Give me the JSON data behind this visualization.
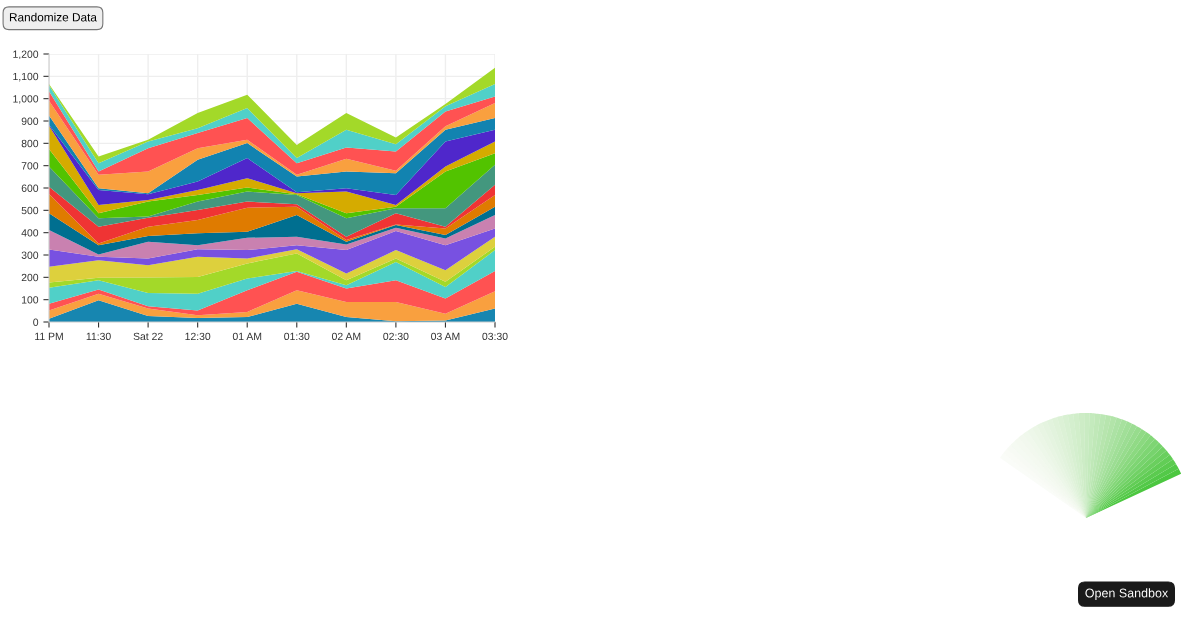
{
  "chart_data": {
    "type": "area",
    "stacked": true,
    "grid": true,
    "legend": false,
    "categories": [
      "11 PM",
      "11:30",
      "Sat 22",
      "12:30",
      "01 AM",
      "01:30",
      "02 AM",
      "02:30",
      "03 AM",
      "03:30"
    ],
    "ylim": [
      0,
      1200
    ],
    "yticks": [
      0,
      100,
      200,
      300,
      400,
      500,
      600,
      700,
      800,
      900,
      {
        "value": 1000,
        "label": "1,000"
      },
      {
        "value": 1100,
        "label": "1,100"
      },
      {
        "value": 1200,
        "label": "1,200"
      }
    ],
    "series": [
      {
        "color": "#1786b0",
        "values": [
          15,
          97,
          27,
          18,
          22,
          82,
          22,
          3,
          7,
          60
        ]
      },
      {
        "color": "#f9a03f",
        "values": [
          37,
          30,
          33,
          12,
          23,
          60,
          68,
          87,
          30,
          78
        ]
      },
      {
        "color": "#ff5252",
        "values": [
          30,
          18,
          10,
          22,
          97,
          83,
          60,
          97,
          68,
          90
        ]
      },
      {
        "color": "#50d0c8",
        "values": [
          71,
          42,
          60,
          75,
          53,
          3,
          15,
          82,
          52,
          94
        ]
      },
      {
        "color": "#a3d929",
        "values": [
          24,
          11,
          69,
          75,
          67,
          79,
          22,
          15,
          23,
          15
        ]
      },
      {
        "color": "#ddd03d",
        "values": [
          70,
          79,
          55,
          90,
          22,
          19,
          30,
          38,
          52,
          45
        ]
      },
      {
        "color": "#7851e1",
        "values": [
          78,
          15,
          30,
          34,
          38,
          18,
          105,
          85,
          112,
          37
        ]
      },
      {
        "color": "#c981b0",
        "values": [
          87,
          10,
          75,
          18,
          55,
          38,
          25,
          15,
          30,
          60
        ]
      },
      {
        "color": "#006f90",
        "values": [
          75,
          42,
          26,
          53,
          27,
          97,
          12,
          12,
          15,
          37
        ]
      },
      {
        "color": "#df7b00",
        "values": [
          86,
          8,
          42,
          60,
          108,
          37,
          8,
          3,
          30,
          53
        ]
      },
      {
        "color": "#ef3434",
        "values": [
          33,
          75,
          40,
          44,
          27,
          11,
          15,
          50,
          8,
          45
        ]
      },
      {
        "color": "#43977e",
        "values": [
          90,
          37,
          5,
          38,
          45,
          42,
          82,
          22,
          82,
          90
        ]
      },
      {
        "color": "#52c300",
        "values": [
          79,
          23,
          67,
          30,
          18,
          3,
          23,
          7,
          165,
          52
        ]
      },
      {
        "color": "#d5ab00",
        "values": [
          104,
          37,
          7,
          22,
          42,
          4,
          97,
          8,
          22,
          52
        ]
      },
      {
        "color": "#4f27cb",
        "values": [
          4,
          67,
          26,
          38,
          90,
          5,
          15,
          45,
          112,
          53
        ]
      },
      {
        "color": "#1283b0",
        "values": [
          42,
          8,
          4,
          97,
          67,
          70,
          75,
          97,
          53,
          52
        ]
      },
      {
        "color": "#f9a03f",
        "values": [
          66,
          60,
          98,
          52,
          15,
          8,
          57,
          11,
          15,
          68
        ]
      },
      {
        "color": "#ff5252",
        "values": [
          42,
          15,
          104,
          68,
          97,
          52,
          50,
          86,
          67,
          29
        ]
      },
      {
        "color": "#50d0c8",
        "values": [
          27,
          37,
          30,
          22,
          45,
          23,
          80,
          33,
          23,
          56
        ]
      },
      {
        "color": "#a3d929",
        "values": [
          6,
          30,
          8,
          68,
          60,
          59,
          75,
          30,
          10,
          72
        ]
      }
    ],
    "annotations": [
      "Randomize Data",
      "Open Sandbox"
    ]
  }
}
